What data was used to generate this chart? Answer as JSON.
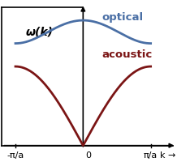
{
  "optical_color": "#4A6FA5",
  "acoustic_color": "#7B1515",
  "background_color": "#FFFFFF",
  "omega_label": "ω(k)",
  "optical_label": "optical",
  "acoustic_label": "acoustic",
  "k_label": "k →",
  "x_left_label": "-π/a",
  "x_right_label": "π/a",
  "x_origin_label": "0",
  "figsize": [
    2.18,
    2.0
  ],
  "dpi": 100,
  "optical_label_fontsize": 9.5,
  "acoustic_label_fontsize": 9.5,
  "omega_label_fontsize": 10,
  "tick_label_fontsize": 8,
  "k_label_fontsize": 8,
  "optical_max": 1.9,
  "optical_min": 1.55,
  "acoustic_max": 1.2,
  "xlim_left": -1.22,
  "xlim_right": 1.38,
  "ylim_bottom": -0.22,
  "ylim_top": 2.2
}
